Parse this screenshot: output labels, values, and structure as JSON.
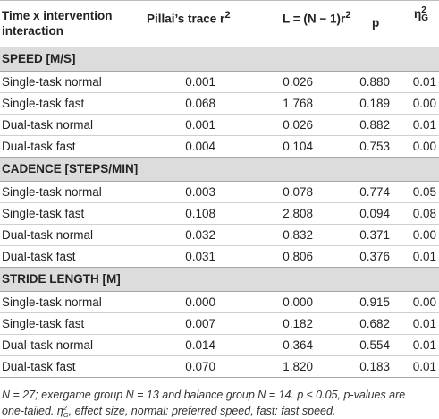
{
  "header": {
    "col1_line1": "Time x intervention",
    "col1_line2": "interaction",
    "col2": "Pillai’s trace r",
    "col2_sup": "2",
    "col3": "L = (N − 1)r",
    "col3_sup": "2",
    "col4": "p",
    "col5_symbol": "η",
    "col5_sup": "2",
    "col5_sub": "G"
  },
  "sections": [
    {
      "title": "SPEED [M/S]",
      "rows": [
        {
          "label": "Single-task normal",
          "pillai": "0.001",
          "L": "0.026",
          "p": "0.880",
          "eta": "0.01"
        },
        {
          "label": "Single-task fast",
          "pillai": "0.068",
          "L": "1.768",
          "p": "0.189",
          "eta": "0.00"
        },
        {
          "label": "Dual-task normal",
          "pillai": "0.001",
          "L": "0.026",
          "p": "0.882",
          "eta": "0.01"
        },
        {
          "label": "Dual-task fast",
          "pillai": "0.004",
          "L": "0.104",
          "p": "0.753",
          "eta": "0.00"
        }
      ]
    },
    {
      "title": "CADENCE [STEPS/MIN]",
      "rows": [
        {
          "label": "Single-task normal",
          "pillai": "0.003",
          "L": "0.078",
          "p": "0.774",
          "eta": "0.05"
        },
        {
          "label": "Single-task fast",
          "pillai": "0.108",
          "L": "2.808",
          "p": "0.094",
          "eta": "0.08"
        },
        {
          "label": "Dual-task normal",
          "pillai": "0.032",
          "L": "0.832",
          "p": "0.371",
          "eta": "0.00"
        },
        {
          "label": "Dual-task fast",
          "pillai": "0.031",
          "L": "0.806",
          "p": "0.376",
          "eta": "0.01"
        }
      ]
    },
    {
      "title": "STRIDE LENGTH [M]",
      "rows": [
        {
          "label": "Single-task normal",
          "pillai": "0.000",
          "L": "0.000",
          "p": "0.915",
          "eta": "0.00"
        },
        {
          "label": "Single-task fast",
          "pillai": "0.007",
          "L": "0.182",
          "p": "0.682",
          "eta": "0.01"
        },
        {
          "label": "Dual-task normal",
          "pillai": "0.014",
          "L": "0.364",
          "p": "0.554",
          "eta": "0.01"
        },
        {
          "label": "Dual-task fast",
          "pillai": "0.070",
          "L": "1.820",
          "p": "0.183",
          "eta": "0.01"
        }
      ]
    }
  ],
  "footnote": {
    "line1": "N = 27; exergame group N = 13 and balance group N = 14. p ≤ 0.05, p-values are",
    "line2_part1": "one-tailed. η",
    "line2_sup": "2",
    "line2_sub": "G",
    "line2_part2": ", effect size, normal: preferred speed, fast: fast speed."
  }
}
